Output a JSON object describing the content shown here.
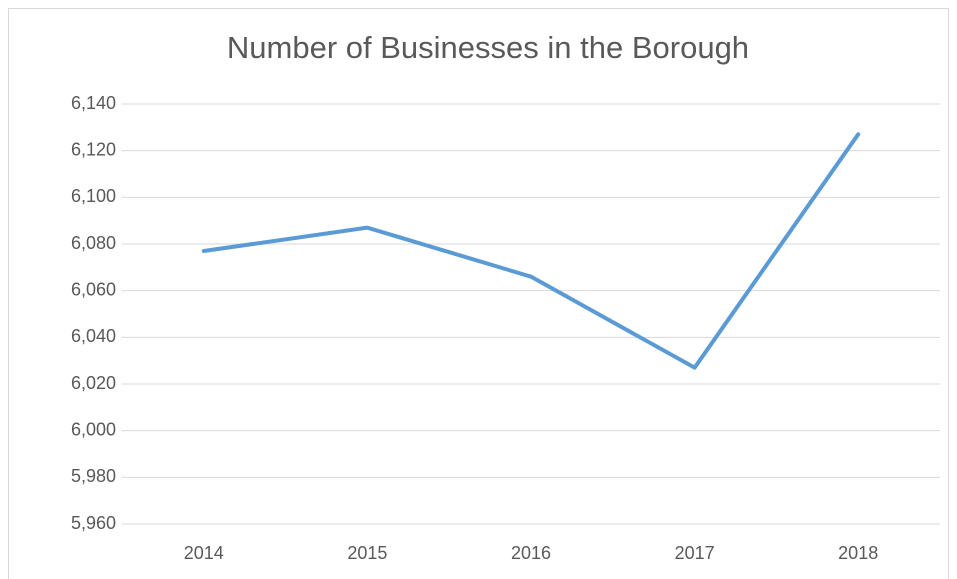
{
  "chart_data": {
    "type": "line",
    "title": "Number of Businesses in the Borough",
    "categories": [
      "2014",
      "2015",
      "2016",
      "2017",
      "2018"
    ],
    "series": [
      {
        "color": "#5b9bd5",
        "values": [
          6077,
          6087,
          6066,
          6027,
          6127
        ]
      }
    ],
    "ylim": [
      5960,
      6140
    ],
    "yticks": [
      {
        "value": 5960,
        "label": "5,960"
      },
      {
        "value": 5980,
        "label": "5,980"
      },
      {
        "value": 6000,
        "label": "6,000"
      },
      {
        "value": 6020,
        "label": "6,020"
      },
      {
        "value": 6040,
        "label": "6,040"
      },
      {
        "value": 6060,
        "label": "6,060"
      },
      {
        "value": 6080,
        "label": "6,080"
      },
      {
        "value": 6100,
        "label": "6,100"
      },
      {
        "value": 6120,
        "label": "6,120"
      },
      {
        "value": 6140,
        "label": "6,140"
      }
    ],
    "grid": true
  }
}
